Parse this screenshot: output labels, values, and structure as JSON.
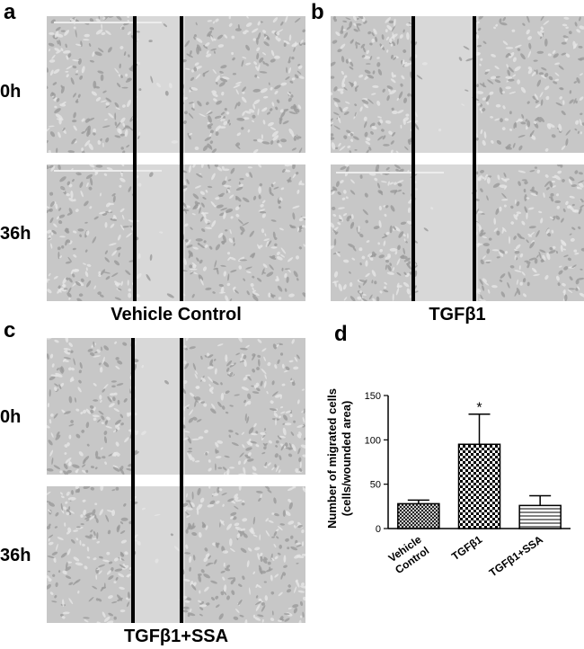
{
  "panels": {
    "a": {
      "letter": "a",
      "row_top": "0h",
      "row_bottom": "36h",
      "caption": "Vehicle Control"
    },
    "b": {
      "letter": "b",
      "caption": "TGFβ1"
    },
    "c": {
      "letter": "c",
      "row_top": "0h",
      "row_bottom": "36h",
      "caption": "TGFβ1+SSA"
    },
    "d": {
      "letter": "d"
    }
  },
  "colors": {
    "micro_bg": "#c7c7c7",
    "micro_gap": "#d8d8d8",
    "lines": "#000000"
  },
  "chart_data": {
    "type": "bar",
    "ylabel_line1": "Number of migrated cells",
    "ylabel_line2": "(cells/wounded area)",
    "ylim": [
      0,
      150
    ],
    "yticks": [
      0,
      50,
      100,
      150
    ],
    "categories": [
      {
        "line1": "Vehicle",
        "line2": "Control"
      },
      {
        "line1": "TGFβ1",
        "line2": ""
      },
      {
        "line1": "TGFβ1+SSA",
        "line2": ""
      }
    ],
    "values": [
      28,
      95,
      26
    ],
    "error": [
      4,
      34,
      11
    ],
    "patterns": [
      "crosshatch-fine",
      "checker",
      "horizontal-lines"
    ],
    "annotations": [
      {
        "category_index": 1,
        "text": "*"
      }
    ],
    "grid": false,
    "legend": "none"
  }
}
